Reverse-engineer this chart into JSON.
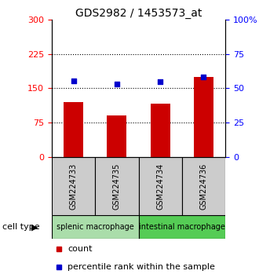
{
  "title": "GDS2982 / 1453573_at",
  "samples": [
    "GSM224733",
    "GSM224735",
    "GSM224734",
    "GSM224736"
  ],
  "counts": [
    120,
    90,
    117,
    175
  ],
  "percentiles": [
    55.5,
    53.0,
    55.0,
    58.0
  ],
  "left_ylim": [
    0,
    300
  ],
  "right_ylim": [
    0,
    100
  ],
  "left_yticks": [
    0,
    75,
    150,
    225,
    300
  ],
  "right_yticks": [
    0,
    25,
    50,
    75,
    100
  ],
  "right_yticklabels": [
    "0",
    "25",
    "50",
    "75",
    "100%"
  ],
  "bar_color": "#cc0000",
  "dot_color": "#0000cc",
  "bar_width": 0.45,
  "groups": [
    {
      "label": "splenic macrophage",
      "indices": [
        0,
        1
      ],
      "color": "#aaddaa"
    },
    {
      "label": "intestinal macrophage",
      "indices": [
        2,
        3
      ],
      "color": "#55cc55"
    }
  ],
  "cell_type_label": "cell type",
  "legend_count_label": "count",
  "legend_percentile_label": "percentile rank within the sample",
  "hlines": [
    75,
    150,
    225
  ],
  "sample_box_color": "#cccccc",
  "title_fontsize": 10,
  "tick_fontsize": 8,
  "sample_fontsize": 7,
  "group_fontsize": 7,
  "legend_fontsize": 8
}
